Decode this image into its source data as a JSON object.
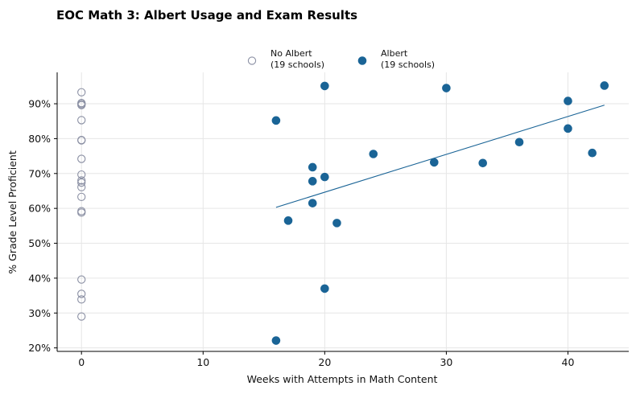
{
  "chart_data": {
    "type": "scatter",
    "title": "EOC Math 3: Albert Usage and Exam Results",
    "xlabel": "Weeks with Attempts in Math Content",
    "ylabel": "% Grade Level Proficient",
    "xlim": [
      -2,
      45
    ],
    "ylim": [
      19,
      99
    ],
    "x_ticks": [
      0,
      10,
      20,
      30,
      40
    ],
    "x_tick_labels": [
      "0",
      "10",
      "20",
      "30",
      "40"
    ],
    "y_ticks": [
      20,
      30,
      40,
      50,
      60,
      70,
      80,
      90
    ],
    "y_tick_labels": [
      "20%",
      "30%",
      "40%",
      "50%",
      "60%",
      "70%",
      "80%",
      "90%"
    ],
    "grid": true,
    "legend_position": "top-center",
    "series": [
      {
        "name": "No Albert",
        "legend_lines": [
          "No Albert",
          "(19 schools)"
        ],
        "marker": "hollow-circle",
        "color": "#8a8fa3",
        "x": [
          0,
          0,
          0,
          0,
          0,
          0,
          0,
          0,
          0,
          0,
          0,
          0,
          0,
          0,
          0,
          0,
          0,
          0,
          0
        ],
        "y": [
          93.3,
          90.2,
          89.6,
          85.3,
          79.6,
          79.5,
          74.2,
          69.7,
          68.0,
          67.4,
          66.1,
          63.3,
          59.2,
          58.8,
          39.6,
          35.5,
          33.9,
          29.0,
          89.9
        ]
      },
      {
        "name": "Albert",
        "legend_lines": [
          "Albert",
          "(19 schools)"
        ],
        "marker": "filled-circle",
        "color": "#1a6496",
        "x": [
          16,
          16,
          17,
          19,
          19,
          19,
          20,
          20,
          20,
          21,
          24,
          29,
          30,
          33,
          36,
          40,
          40,
          42,
          43
        ],
        "y": [
          85.2,
          22.1,
          56.5,
          71.8,
          67.8,
          61.5,
          95.1,
          69.0,
          37.0,
          55.8,
          75.6,
          73.2,
          94.5,
          73.0,
          79.0,
          90.8,
          82.9,
          75.9,
          95.2
        ]
      }
    ],
    "trendline": {
      "series": "Albert",
      "color": "#1a6496",
      "x": [
        16,
        43
      ],
      "y": [
        60.3,
        89.6
      ]
    }
  }
}
